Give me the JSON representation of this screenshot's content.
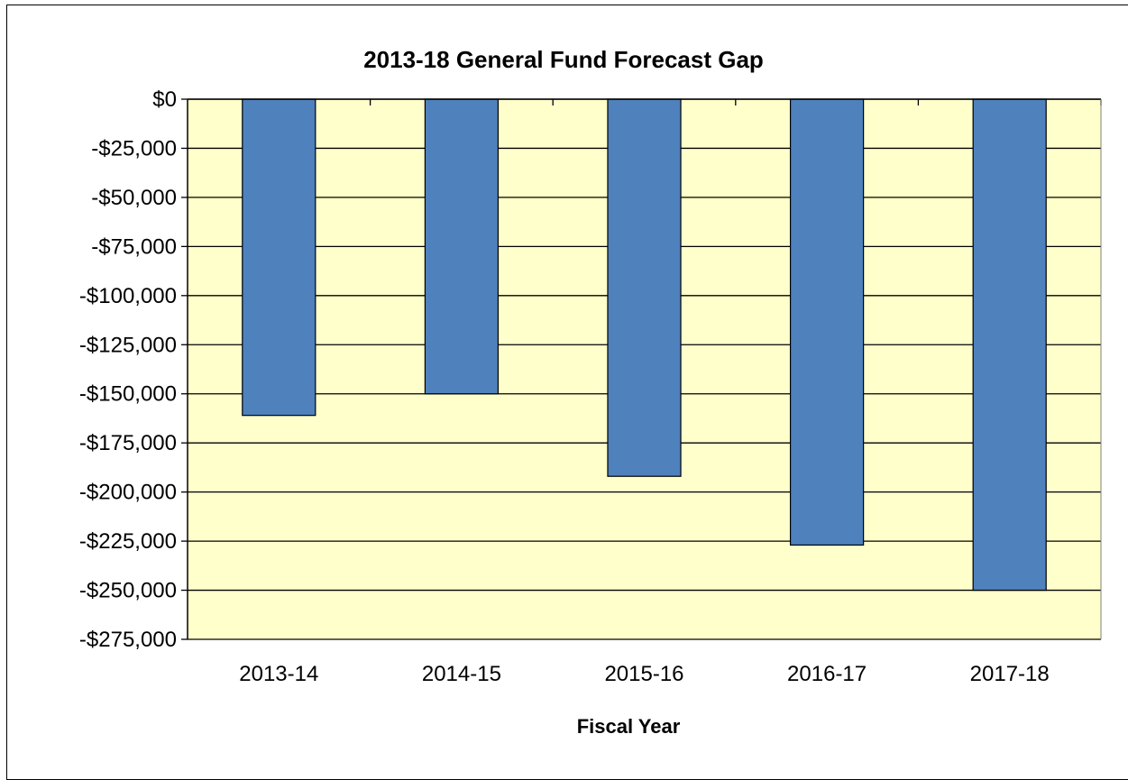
{
  "chart_data": {
    "type": "bar",
    "title": "2013-18 General Fund Forecast Gap",
    "xlabel": "Fiscal Year",
    "ylabel": "",
    "categories": [
      "2013-14",
      "2014-15",
      "2015-16",
      "2016-17",
      "2017-18"
    ],
    "values": [
      -161000,
      -150000,
      -192000,
      -227000,
      -250000
    ],
    "ylim": [
      -275000,
      0
    ],
    "yticks": [
      0,
      -25000,
      -50000,
      -75000,
      -100000,
      -125000,
      -150000,
      -175000,
      -200000,
      -225000,
      -250000,
      -275000
    ],
    "ytick_labels": [
      "$0",
      "-$25,000",
      "-$50,000",
      "-$75,000",
      "-$100,000",
      "-$125,000",
      "-$150,000",
      "-$175,000",
      "-$200,000",
      "-$225,000",
      "-$250,000",
      "-$275,000"
    ],
    "grid": true,
    "legend": "none",
    "colors": {
      "bar": "#4F81BD",
      "plot_background": "#FFFFCC",
      "gridline": "#000000"
    }
  }
}
